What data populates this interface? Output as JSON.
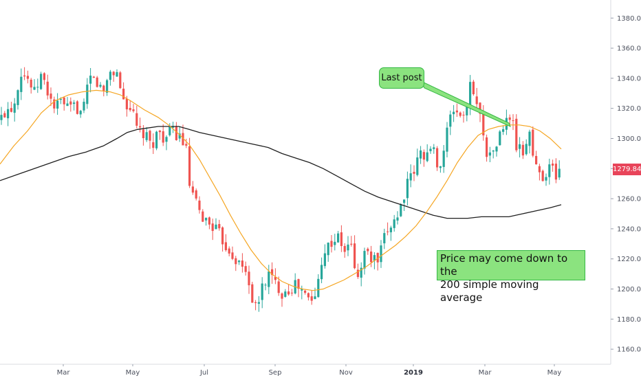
{
  "chart_data": {
    "type": "candlestick",
    "title": "",
    "y_axis": {
      "min": 1150,
      "max": 1392,
      "position": "right",
      "ticks": [
        1160,
        1180,
        1200,
        1220,
        1240,
        1260,
        1280,
        1300,
        1320,
        1340,
        1360,
        1380
      ]
    },
    "x_axis": {
      "ticks": [
        "Mar",
        "May",
        "Jul",
        "Sep",
        "Nov",
        "2019",
        "Mar",
        "May"
      ]
    },
    "last_price": "1279.84",
    "colors": {
      "up": "#26a69a",
      "down": "#ef5350",
      "ma_fast": "#f5a623",
      "ma_slow": "#1e1e1e",
      "annotation_fill": "#8be37f",
      "annotation_border": "#35b844",
      "badge": "#e8445a"
    },
    "ma_fast_anchors": [
      [
        0,
        1283
      ],
      [
        20,
        1295
      ],
      [
        40,
        1305
      ],
      [
        60,
        1317
      ],
      [
        80,
        1325
      ],
      [
        100,
        1329
      ],
      [
        120,
        1331
      ],
      [
        140,
        1332
      ],
      [
        160,
        1331
      ],
      [
        175,
        1329
      ],
      [
        190,
        1325
      ],
      [
        210,
        1319
      ],
      [
        230,
        1314
      ],
      [
        245,
        1309
      ],
      [
        260,
        1303
      ],
      [
        275,
        1296
      ],
      [
        290,
        1286
      ],
      [
        305,
        1274
      ],
      [
        320,
        1262
      ],
      [
        335,
        1249
      ],
      [
        350,
        1237
      ],
      [
        365,
        1226
      ],
      [
        380,
        1217
      ],
      [
        395,
        1210
      ],
      [
        410,
        1205
      ],
      [
        425,
        1202
      ],
      [
        440,
        1200
      ],
      [
        455,
        1199
      ],
      [
        470,
        1200
      ],
      [
        485,
        1203
      ],
      [
        500,
        1206
      ],
      [
        515,
        1210
      ],
      [
        530,
        1214
      ],
      [
        545,
        1219
      ],
      [
        560,
        1224
      ],
      [
        575,
        1229
      ],
      [
        590,
        1235
      ],
      [
        605,
        1242
      ],
      [
        620,
        1251
      ],
      [
        635,
        1261
      ],
      [
        650,
        1272
      ],
      [
        665,
        1284
      ],
      [
        680,
        1294
      ],
      [
        695,
        1302
      ],
      [
        710,
        1306
      ],
      [
        725,
        1308
      ],
      [
        740,
        1309
      ],
      [
        755,
        1309
      ],
      [
        770,
        1308
      ],
      [
        785,
        1305
      ],
      [
        800,
        1300
      ],
      [
        816,
        1293
      ]
    ],
    "ma_slow_anchors": [
      [
        0,
        1272
      ],
      [
        25,
        1276
      ],
      [
        50,
        1280
      ],
      [
        75,
        1284
      ],
      [
        100,
        1288
      ],
      [
        125,
        1291
      ],
      [
        150,
        1295
      ],
      [
        170,
        1300
      ],
      [
        185,
        1304
      ],
      [
        200,
        1306
      ],
      [
        215,
        1307
      ],
      [
        230,
        1308
      ],
      [
        245,
        1308
      ],
      [
        260,
        1308
      ],
      [
        275,
        1306
      ],
      [
        290,
        1304
      ],
      [
        310,
        1302
      ],
      [
        330,
        1300
      ],
      [
        350,
        1298
      ],
      [
        370,
        1296
      ],
      [
        390,
        1294
      ],
      [
        410,
        1290
      ],
      [
        430,
        1287
      ],
      [
        450,
        1284
      ],
      [
        470,
        1280
      ],
      [
        490,
        1275
      ],
      [
        510,
        1270
      ],
      [
        530,
        1265
      ],
      [
        550,
        1261
      ],
      [
        570,
        1258
      ],
      [
        590,
        1255
      ],
      [
        610,
        1252
      ],
      [
        630,
        1249
      ],
      [
        650,
        1247
      ],
      [
        665,
        1247
      ],
      [
        680,
        1247
      ],
      [
        700,
        1248
      ],
      [
        720,
        1248
      ],
      [
        740,
        1248
      ],
      [
        760,
        1250
      ],
      [
        780,
        1252
      ],
      [
        800,
        1254
      ],
      [
        816,
        1256
      ]
    ],
    "price_anchors": [
      [
        0,
        1312
      ],
      [
        10,
        1320
      ],
      [
        20,
        1322
      ],
      [
        30,
        1345
      ],
      [
        40,
        1340
      ],
      [
        50,
        1330
      ],
      [
        60,
        1342
      ],
      [
        70,
        1330
      ],
      [
        80,
        1320
      ],
      [
        90,
        1325
      ],
      [
        100,
        1318
      ],
      [
        110,
        1322
      ],
      [
        120,
        1315
      ],
      [
        130,
        1340
      ],
      [
        140,
        1338
      ],
      [
        150,
        1330
      ],
      [
        160,
        1345
      ],
      [
        170,
        1343
      ],
      [
        180,
        1325
      ],
      [
        190,
        1320
      ],
      [
        200,
        1305
      ],
      [
        210,
        1302
      ],
      [
        220,
        1295
      ],
      [
        230,
        1305
      ],
      [
        240,
        1300
      ],
      [
        250,
        1305
      ],
      [
        260,
        1302
      ],
      [
        270,
        1295
      ],
      [
        275,
        1270
      ],
      [
        280,
        1262
      ],
      [
        290,
        1250
      ],
      [
        300,
        1245
      ],
      [
        310,
        1242
      ],
      [
        320,
        1235
      ],
      [
        330,
        1228
      ],
      [
        340,
        1222
      ],
      [
        350,
        1215
      ],
      [
        360,
        1210
      ],
      [
        370,
        1185
      ],
      [
        375,
        1190
      ],
      [
        380,
        1200
      ],
      [
        390,
        1210
      ],
      [
        400,
        1204
      ],
      [
        410,
        1198
      ],
      [
        420,
        1200
      ],
      [
        430,
        1203
      ],
      [
        440,
        1198
      ],
      [
        450,
        1192
      ],
      [
        460,
        1195
      ],
      [
        465,
        1215
      ],
      [
        470,
        1225
      ],
      [
        480,
        1230
      ],
      [
        490,
        1235
      ],
      [
        500,
        1225
      ],
      [
        510,
        1230
      ],
      [
        520,
        1205
      ],
      [
        530,
        1225
      ],
      [
        540,
        1220
      ],
      [
        550,
        1218
      ],
      [
        560,
        1235
      ],
      [
        570,
        1245
      ],
      [
        580,
        1250
      ],
      [
        590,
        1268
      ],
      [
        600,
        1275
      ],
      [
        610,
        1290
      ],
      [
        620,
        1290
      ],
      [
        630,
        1292
      ],
      [
        640,
        1280
      ],
      [
        650,
        1305
      ],
      [
        660,
        1320
      ],
      [
        670,
        1315
      ],
      [
        680,
        1320
      ],
      [
        685,
        1340
      ],
      [
        695,
        1320
      ],
      [
        705,
        1300
      ],
      [
        710,
        1285
      ],
      [
        720,
        1295
      ],
      [
        730,
        1305
      ],
      [
        740,
        1315
      ],
      [
        745,
        1312
      ],
      [
        750,
        1295
      ],
      [
        760,
        1290
      ],
      [
        770,
        1305
      ],
      [
        775,
        1288
      ],
      [
        780,
        1280
      ],
      [
        790,
        1275
      ],
      [
        800,
        1282
      ],
      [
        810,
        1275
      ],
      [
        816,
        1280
      ]
    ]
  },
  "annotations": {
    "last_post": "Last post",
    "price_note_line1": "Price may come down to the",
    "price_note_line2": "200 simple moving average"
  }
}
